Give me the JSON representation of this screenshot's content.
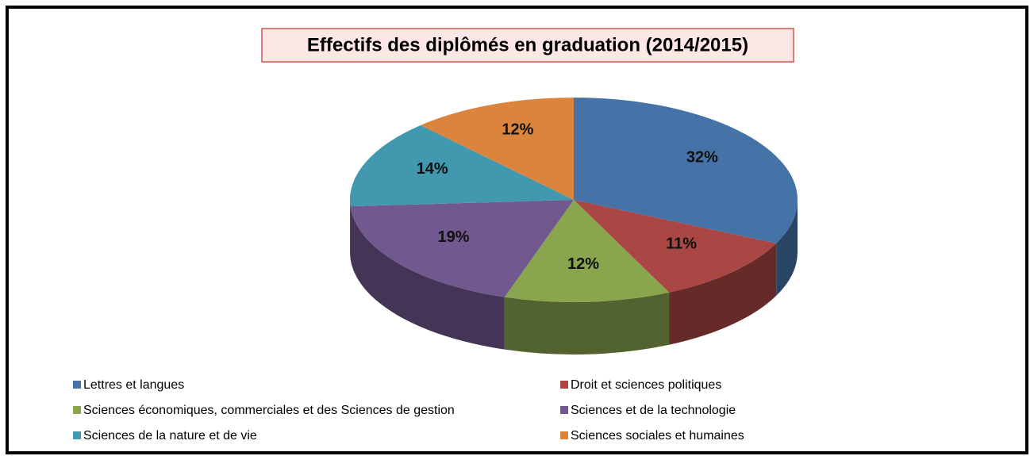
{
  "chart_data": {
    "type": "pie3d",
    "title": "Effectifs des diplômés en graduation  (2014/2015)",
    "categories": [
      "Lettres et langues",
      "Droit et sciences politiques",
      "Sciences économiques, commerciales et des Sciences de gestion",
      "Sciences et  de la technologie",
      "Sciences de la nature et de vie",
      "Sciences  sociales et humaines"
    ],
    "values": [
      32,
      11,
      12,
      19,
      14,
      12
    ],
    "value_labels": [
      "32%",
      "11%",
      "12%",
      "19%",
      "14%",
      "12%"
    ],
    "colors": [
      "#4572a7",
      "#aa4643",
      "#89a54e",
      "#71588f",
      "#4198af",
      "#db843d"
    ]
  }
}
